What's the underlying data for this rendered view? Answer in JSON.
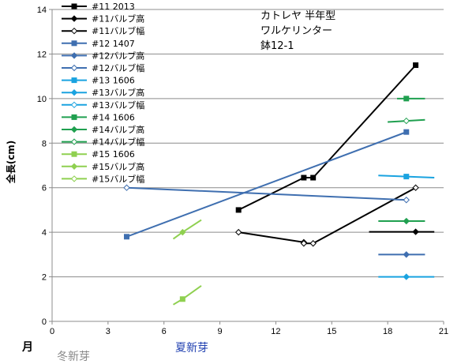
{
  "chart_data": {
    "type": "line",
    "notes": [
      "カトレヤ 半年型",
      "ワルケリンター",
      "鉢12-1"
    ],
    "ylabel": "全長(cm)",
    "xlim": [
      0,
      21
    ],
    "ylim": [
      0,
      14
    ],
    "xticks": [
      0,
      3,
      6,
      9,
      12,
      15,
      18,
      21
    ],
    "yticks": [
      0,
      2,
      4,
      6,
      8,
      10,
      12,
      14
    ],
    "grid": "horizontal",
    "legend_position": "top-left",
    "x_annotations": {
      "month_label": "月",
      "winter_label": "冬新芽",
      "summer_label": "夏新芽"
    },
    "series": [
      {
        "name": "#11 2013",
        "color": "#000000",
        "marker": "square",
        "points": [
          [
            10,
            5.0
          ],
          [
            13.5,
            6.45
          ],
          [
            14,
            6.45
          ],
          [
            19.5,
            11.5
          ]
        ]
      },
      {
        "name": "#11バルブ高",
        "color": "#000000",
        "marker": "diamond",
        "points": [
          [
            17,
            4.02
          ],
          [
            19.5,
            4.02
          ],
          [
            20.5,
            4.02
          ]
        ]
      },
      {
        "name": "#11バルブ幅",
        "color": "#000000",
        "marker": "diamond-open",
        "points": [
          [
            10,
            4.0
          ],
          [
            13.5,
            3.55
          ],
          [
            13.5,
            3.5
          ],
          [
            14,
            3.5
          ],
          [
            19.5,
            6.0
          ]
        ]
      },
      {
        "name": "#12 1407",
        "color": "#3f6fb0",
        "marker": "square",
        "points": [
          [
            4,
            3.8
          ],
          [
            19,
            8.5
          ]
        ]
      },
      {
        "name": "#12バルブ高",
        "color": "#3f6fb0",
        "marker": "diamond",
        "points": [
          [
            17.5,
            3.0
          ],
          [
            19,
            3.0
          ],
          [
            20,
            3.0
          ]
        ]
      },
      {
        "name": "#12バルブ幅",
        "color": "#3f6fb0",
        "marker": "diamond-open",
        "points": [
          [
            4,
            6.0
          ],
          [
            19,
            5.45
          ]
        ]
      },
      {
        "name": "#13 1606",
        "color": "#1aa3e0",
        "marker": "square",
        "points": [
          [
            17.5,
            6.55
          ],
          [
            19,
            6.5
          ],
          [
            20.5,
            6.45
          ]
        ]
      },
      {
        "name": "#13バルブ高",
        "color": "#1aa3e0",
        "marker": "diamond",
        "points": [
          [
            17.5,
            2.0
          ],
          [
            19,
            2.0
          ],
          [
            20.5,
            2.0
          ]
        ]
      },
      {
        "name": "#13バルブ幅",
        "color": "#1aa3e0",
        "marker": "diamond-open",
        "points": []
      },
      {
        "name": "#14 1606",
        "color": "#20a050",
        "marker": "square",
        "points": [
          [
            18.5,
            10.0
          ],
          [
            19,
            10.0
          ],
          [
            20,
            10.0
          ]
        ]
      },
      {
        "name": "#14バルブ高",
        "color": "#20a050",
        "marker": "diamond",
        "points": [
          [
            17.5,
            4.5
          ],
          [
            19,
            4.5
          ],
          [
            20,
            4.5
          ]
        ]
      },
      {
        "name": "#14バルブ幅",
        "color": "#20a050",
        "marker": "diamond-open",
        "points": [
          [
            18,
            8.95
          ],
          [
            19,
            9.0
          ],
          [
            20,
            9.05
          ]
        ]
      },
      {
        "name": "#15 1606",
        "color": "#8fd050",
        "marker": "square",
        "points": [
          [
            6.5,
            0.75
          ],
          [
            7,
            1.0
          ],
          [
            8,
            1.6
          ]
        ]
      },
      {
        "name": "#15バルブ高",
        "color": "#8fd050",
        "marker": "diamond",
        "points": [
          [
            6.5,
            3.7
          ],
          [
            7,
            4.0
          ],
          [
            8,
            4.55
          ]
        ]
      },
      {
        "name": "#15バルブ幅",
        "color": "#8fd050",
        "marker": "diamond-open",
        "points": []
      }
    ]
  }
}
